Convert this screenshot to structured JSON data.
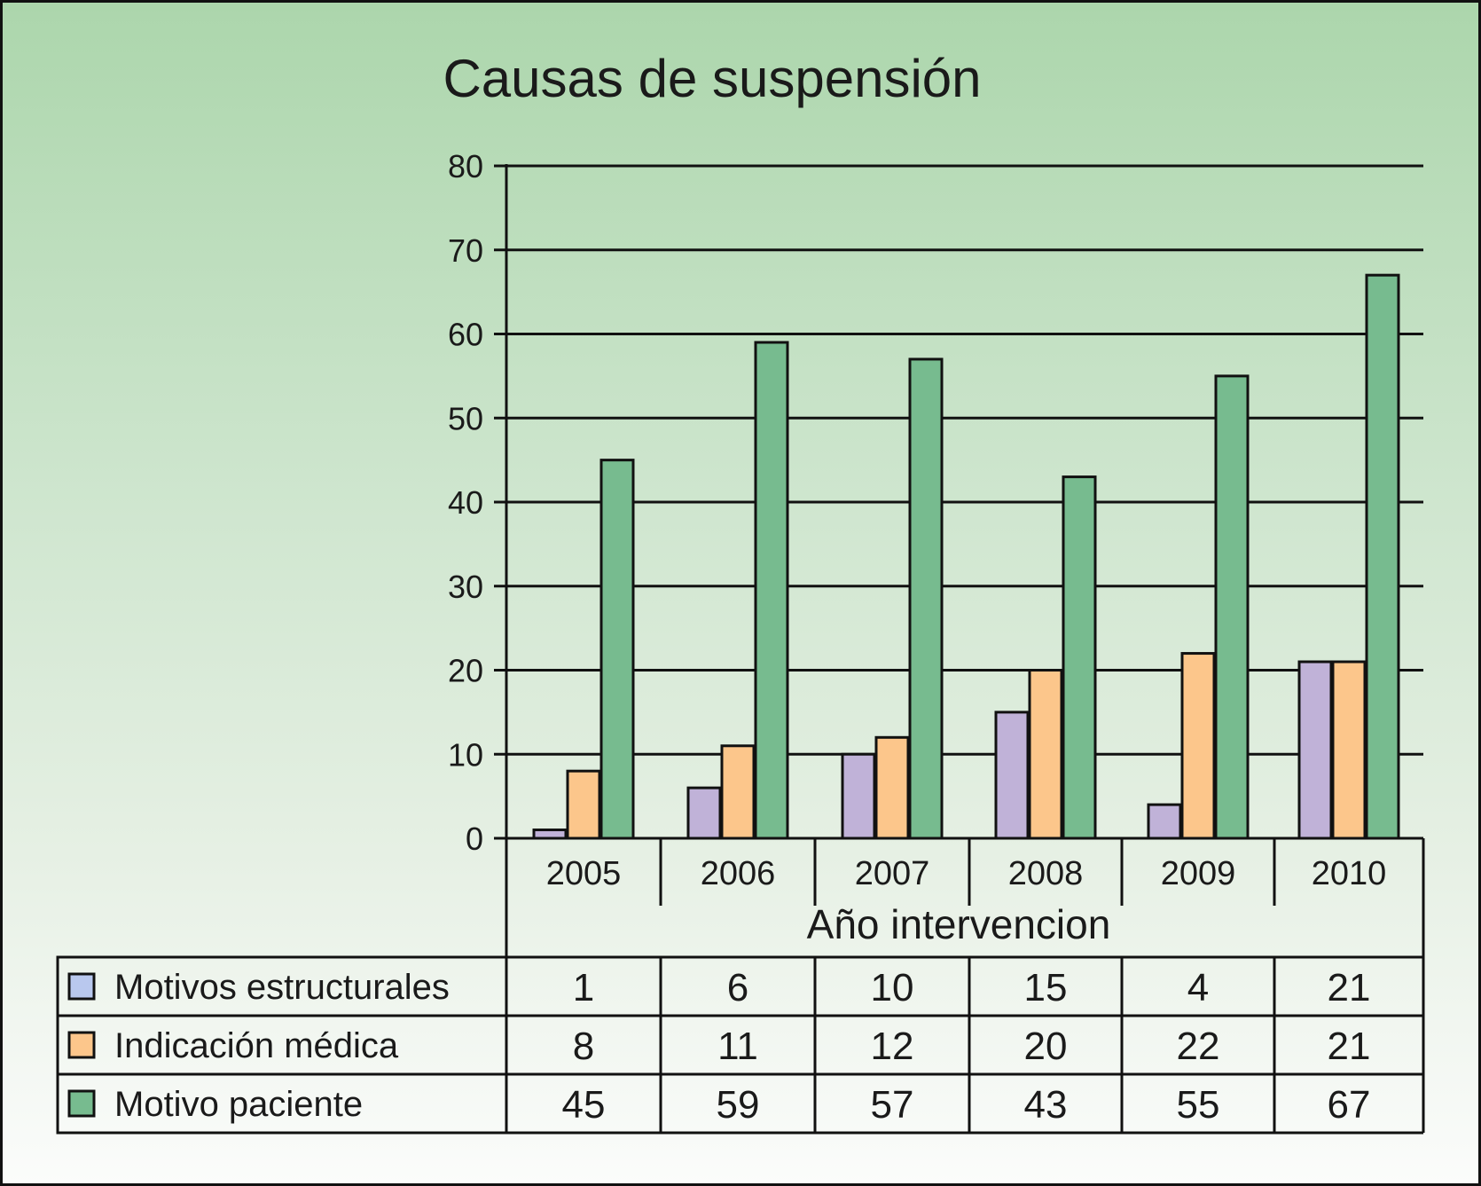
{
  "chart_data": {
    "type": "bar",
    "title": "Causas de suspensión",
    "xlabel": "Año intervencion",
    "ylabel": "",
    "ylim": [
      0,
      80
    ],
    "yticks": [
      0,
      10,
      20,
      30,
      40,
      50,
      60,
      70,
      80
    ],
    "categories": [
      "2005",
      "2006",
      "2007",
      "2008",
      "2009",
      "2010"
    ],
    "series": [
      {
        "name": "Motivos estructurales",
        "color": "#c0b2d8",
        "values": [
          1,
          6,
          10,
          15,
          4,
          21
        ]
      },
      {
        "name": "Indicación médica",
        "color": "#fcc68b",
        "values": [
          8,
          11,
          12,
          20,
          22,
          21
        ]
      },
      {
        "name": "Motivo paciente",
        "color": "#77bb8f",
        "values": [
          45,
          59,
          57,
          43,
          55,
          67
        ]
      }
    ],
    "legend_swatch_color": "#b9c8ee",
    "grid": true,
    "legend": "data-table-below"
  }
}
